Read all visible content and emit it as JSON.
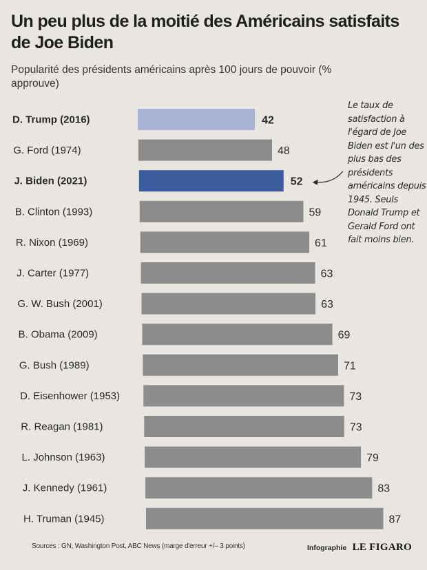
{
  "header": {
    "title": "Un peu plus de la moitié des Américains satisfaits de Joe Biden",
    "subtitle": "Popularité des présidents américains après 100 jours de pouvoir (% approuve)"
  },
  "annotation": "Le taux de satisfaction à l'égard de Joe Biden est l'un des plus bas des présidents américains depuis 1945. Seuls Donald Trump et Gerald Ford ont fait moins bien.",
  "footer": {
    "sources": "Sources : GN, Washington Post, ABC News (marge d'erreur +/– 3 points)",
    "credit_label": "Infographie",
    "credit_logo": "LE FIGARO"
  },
  "colors": {
    "bar_default": "#8c8c8c",
    "bar_trump": "#a9b2d3",
    "bar_biden": "#3d5b9c",
    "label_biden": "#3d5b9c"
  },
  "chart_data": {
    "type": "bar",
    "orientation": "horizontal",
    "title": "Un peu plus de la moitié des Américains satisfaits de Joe Biden",
    "subtitle": "Popularité des présidents américains après 100 jours de pouvoir (% approuve)",
    "xlabel": "",
    "ylabel": "",
    "xlim": [
      0,
      87
    ],
    "grid": false,
    "legend": "none",
    "categories": [
      "D. Trump (2016)",
      "G. Ford (1974)",
      "J. Biden (2021)",
      "B. Clinton (1993)",
      "R. Nixon (1969)",
      "J. Carter (1977)",
      "G. W. Bush (2001)",
      "B. Obama (2009)",
      "G. Bush (1989)",
      "D. Eisenhower (1953)",
      "R. Reagan (1981)",
      "L. Johnson (1963)",
      "J. Kennedy (1961)",
      "H. Truman (1945)"
    ],
    "values": [
      42,
      48,
      52,
      59,
      61,
      63,
      63,
      69,
      71,
      73,
      73,
      79,
      83,
      87
    ],
    "highlight": {
      "D. Trump (2016)": "trump",
      "J. Biden (2021)": "biden"
    }
  }
}
